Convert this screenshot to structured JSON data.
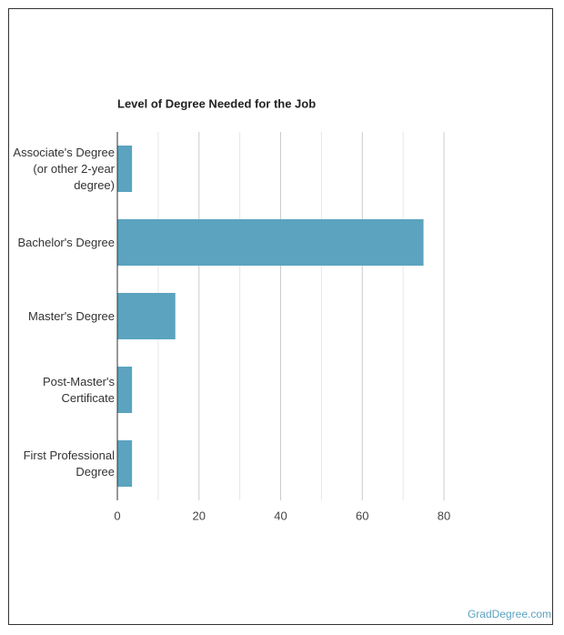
{
  "chart_data": {
    "type": "bar",
    "orientation": "horizontal",
    "title": "Level of Degree Needed for the Job",
    "categories": [
      "Associate's Degree (or other 2-year degree)",
      "Bachelor's Degree",
      "Master's Degree",
      "Post-Master's Certificate",
      "First Professional Degree"
    ],
    "values": [
      3.6,
      75,
      14.2,
      3.6,
      3.6
    ],
    "color": "#5ba3bf",
    "xlim": [
      0,
      80
    ],
    "xticks": [
      0,
      20,
      40,
      60,
      80
    ],
    "xminorticks": [
      10,
      30,
      50,
      70
    ],
    "grid": true
  },
  "footer": "GradDegree.com"
}
